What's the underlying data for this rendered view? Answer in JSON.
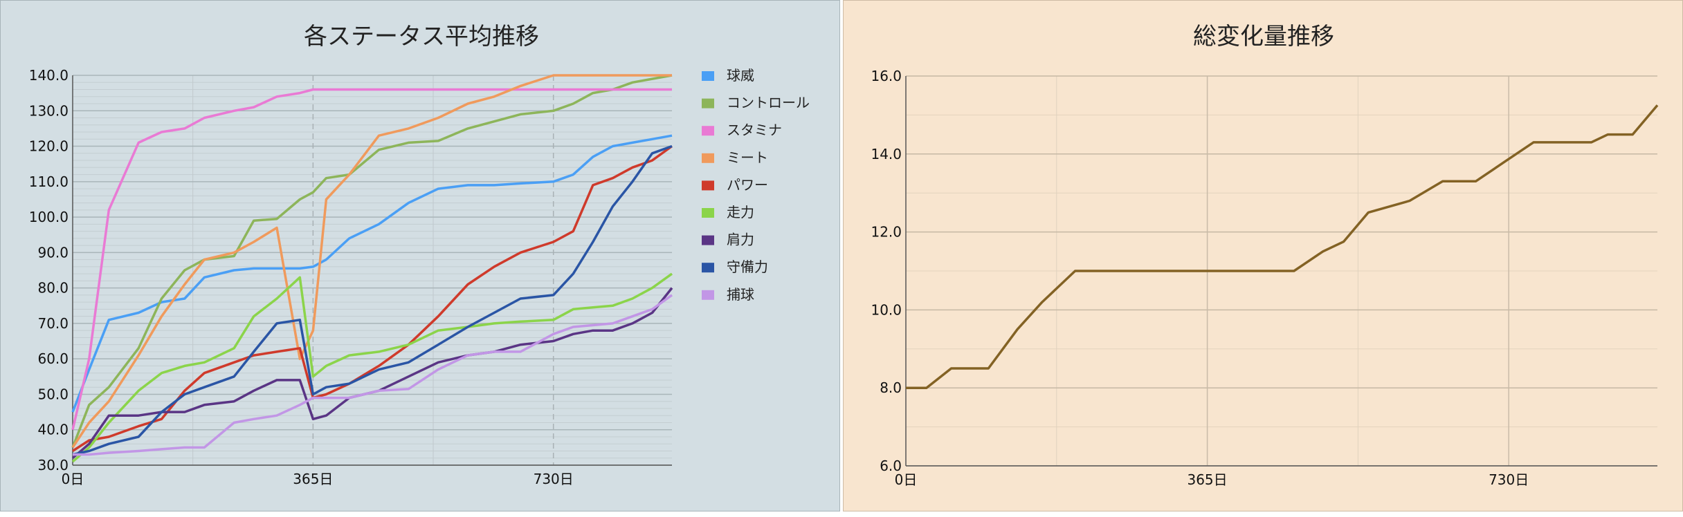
{
  "chart_data": [
    {
      "type": "line",
      "title": "各ステータス平均推移",
      "xlabel": "",
      "ylabel": "",
      "xlim": [
        0,
        910
      ],
      "ylim": [
        30,
        140
      ],
      "x_ticks": [
        "0日",
        "365日",
        "730日"
      ],
      "x_tick_values": [
        0,
        365,
        730
      ],
      "y_ticks": [
        "30.0",
        "40.0",
        "50.0",
        "60.0",
        "70.0",
        "80.0",
        "90.0",
        "100.0",
        "110.0",
        "120.0",
        "130.0",
        "140.0"
      ],
      "grid": true,
      "legend": "right",
      "x": [
        0,
        25,
        55,
        100,
        135,
        170,
        200,
        245,
        275,
        310,
        345,
        365,
        385,
        420,
        465,
        510,
        555,
        600,
        640,
        680,
        730,
        760,
        790,
        820,
        850,
        880,
        910
      ],
      "series": [
        {
          "name": "球威",
          "color": "#4a9ff5",
          "values": [
            45,
            57,
            71,
            73,
            76,
            77,
            83,
            85,
            85.5,
            85.5,
            85.5,
            86,
            88,
            94,
            98,
            104,
            108,
            109,
            109,
            109.5,
            110,
            112,
            117,
            120,
            121,
            122,
            123
          ]
        },
        {
          "name": "コントロール",
          "color": "#8db55a",
          "values": [
            35,
            47,
            52,
            63,
            77,
            85,
            88,
            89,
            99,
            99.5,
            105,
            107,
            111,
            112,
            119,
            121,
            121.5,
            125,
            127,
            129,
            130,
            132,
            135,
            136,
            138,
            139,
            140
          ]
        },
        {
          "name": "スタミナ",
          "color": "#e97ad4",
          "values": [
            40,
            60,
            102,
            121,
            124,
            125,
            128,
            130,
            131,
            134,
            135,
            136,
            136,
            136,
            136,
            136,
            136,
            136,
            136,
            136,
            136,
            136,
            136,
            136,
            136,
            136,
            136
          ]
        },
        {
          "name": "ミート",
          "color": "#f09a5c",
          "values": [
            35,
            42,
            48,
            61,
            72,
            81,
            88,
            90,
            93,
            97,
            60,
            68,
            105,
            112,
            123,
            125,
            128,
            132,
            134,
            137,
            140,
            140,
            140,
            140,
            140,
            140,
            140
          ]
        },
        {
          "name": "パワー",
          "color": "#cf3a2b",
          "values": [
            34,
            37,
            38,
            41,
            43,
            51,
            56,
            59,
            61,
            62,
            63,
            49,
            50,
            53,
            58,
            64,
            72,
            81,
            86,
            90,
            93,
            96,
            109,
            111,
            114,
            116,
            120
          ]
        },
        {
          "name": "走力",
          "color": "#8bd44a",
          "values": [
            31,
            35,
            42,
            51,
            56,
            58,
            59,
            63,
            72,
            77,
            83,
            55,
            58,
            61,
            62,
            64,
            68,
            69,
            70,
            70.5,
            71,
            74,
            74.5,
            75,
            77,
            80,
            84
          ]
        },
        {
          "name": "肩力",
          "color": "#5a3585",
          "values": [
            32,
            36,
            44,
            44,
            45,
            45,
            47,
            48,
            51,
            54,
            54,
            43,
            44,
            49,
            51,
            55,
            59,
            61,
            62,
            64,
            65,
            67,
            68,
            68,
            70,
            73,
            80
          ]
        },
        {
          "name": "守備力",
          "color": "#2a55a5",
          "values": [
            33,
            34,
            36,
            38,
            45,
            50,
            52,
            55,
            62,
            70,
            71,
            50,
            52,
            53,
            57,
            59,
            64,
            69,
            73,
            77,
            78,
            84,
            93,
            103,
            110,
            118,
            120
          ]
        },
        {
          "name": "捕球",
          "color": "#c296e6",
          "values": [
            33,
            33,
            33.5,
            34,
            34.5,
            35,
            35,
            42,
            43,
            44,
            47,
            49,
            49,
            49,
            51,
            51.5,
            57,
            61,
            62,
            62,
            67,
            69,
            69.5,
            70,
            72,
            74,
            78
          ]
        }
      ]
    },
    {
      "type": "line",
      "title": "総変化量推移",
      "xlabel": "",
      "ylabel": "",
      "xlim": [
        0,
        910
      ],
      "ylim": [
        6,
        16
      ],
      "x_ticks": [
        "0日",
        "365日",
        "730日"
      ],
      "x_tick_values": [
        0,
        365,
        730
      ],
      "y_ticks": [
        "6.0",
        "8.0",
        "10.0",
        "12.0",
        "14.0",
        "16.0"
      ],
      "grid": true,
      "series": [
        {
          "name": "",
          "color": "#836224",
          "x": [
            0,
            25,
            55,
            100,
            135,
            165,
            205,
            240,
            270,
            300,
            340,
            370,
            415,
            440,
            470,
            505,
            530,
            560,
            610,
            650,
            690,
            725,
            760,
            810,
            830,
            850,
            880,
            910
          ],
          "values": [
            8,
            8,
            8.5,
            8.5,
            9.5,
            10.2,
            11,
            11,
            11,
            11,
            11,
            11,
            11,
            11,
            11,
            11.5,
            11.75,
            12.5,
            12.8,
            13.3,
            13.3,
            13.8,
            14.3,
            14.3,
            14.3,
            14.5,
            14.5,
            15.25
          ]
        }
      ]
    }
  ]
}
